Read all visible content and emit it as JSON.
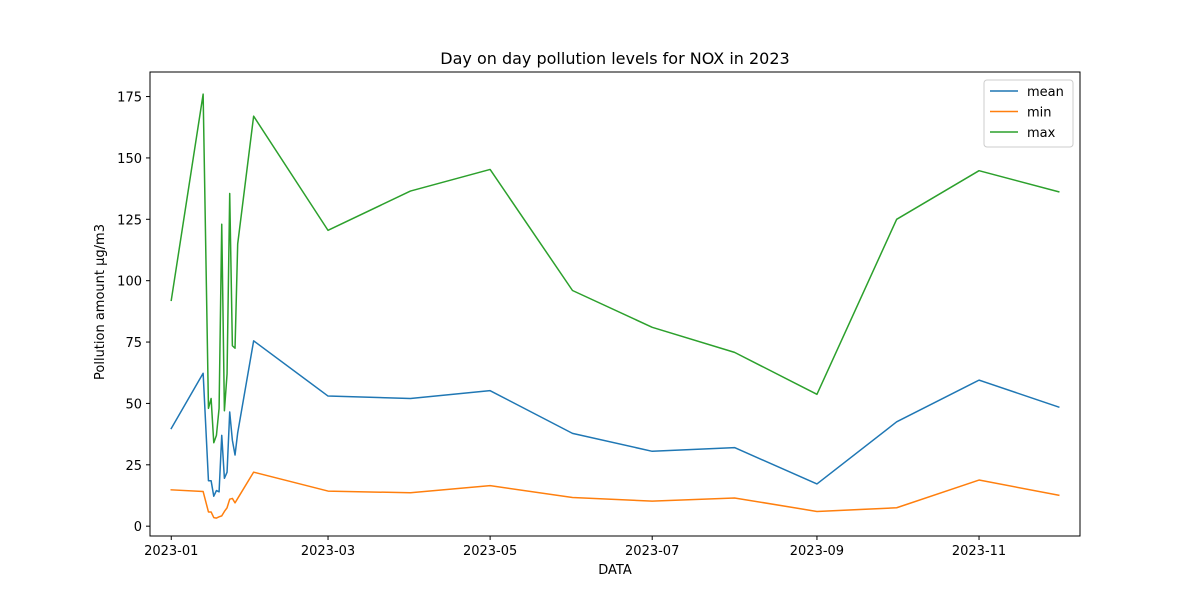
{
  "chart_data": {
    "type": "line",
    "title": "Day on day pollution levels for NOX in 2023",
    "xlabel": "DATA",
    "ylabel": "Pollution amount µg/m3",
    "x_ticks": [
      "2023-01",
      "2023-03",
      "2023-05",
      "2023-07",
      "2023-09",
      "2023-11"
    ],
    "y_ticks": [
      0,
      25,
      50,
      75,
      100,
      125,
      150,
      175
    ],
    "xlim": [
      "2022-12-24",
      "2023-12-09"
    ],
    "ylim": [
      -4,
      185
    ],
    "grid": false,
    "legend_position": "top-right",
    "series": [
      {
        "name": "mean",
        "color": "#1f77b4",
        "x": [
          "2023-01-01",
          "2023-01-13",
          "2023-01-15",
          "2023-01-16",
          "2023-01-17",
          "2023-01-18",
          "2023-01-19",
          "2023-01-20",
          "2023-01-21",
          "2023-01-22",
          "2023-01-23",
          "2023-01-24",
          "2023-01-25",
          "2023-01-26",
          "2023-02-01",
          "2023-03-01",
          "2023-04-01",
          "2023-05-01",
          "2023-06-01",
          "2023-07-01",
          "2023-08-01",
          "2023-09-01",
          "2023-10-01",
          "2023-11-01",
          "2023-12-01"
        ],
        "y": [
          39.8,
          62.3,
          18.5,
          18.5,
          12.2,
          14.5,
          14,
          37,
          19.5,
          22,
          46.5,
          35,
          29,
          38,
          75.5,
          53,
          52,
          55.2,
          37.8,
          30.5,
          32,
          17.2,
          42.5,
          59.5,
          48.5
        ]
      },
      {
        "name": "min",
        "color": "#ff7f0e",
        "x": [
          "2023-01-01",
          "2023-01-13",
          "2023-01-15",
          "2023-01-16",
          "2023-01-17",
          "2023-01-18",
          "2023-01-19",
          "2023-01-20",
          "2023-01-21",
          "2023-01-22",
          "2023-01-23",
          "2023-01-24",
          "2023-01-25",
          "2023-01-26",
          "2023-02-01",
          "2023-03-01",
          "2023-04-01",
          "2023-05-01",
          "2023-06-01",
          "2023-07-01",
          "2023-08-01",
          "2023-09-01",
          "2023-10-01",
          "2023-11-01",
          "2023-12-01"
        ],
        "y": [
          14.8,
          14.1,
          5.8,
          5.8,
          3.5,
          3.3,
          3.8,
          4.2,
          6,
          7.5,
          11,
          11.3,
          9.5,
          11.3,
          22,
          14.3,
          13.6,
          16.5,
          11.7,
          10.2,
          11.5,
          6,
          7.5,
          18.8,
          12.6
        ]
      },
      {
        "name": "max",
        "color": "#2ca02c",
        "x": [
          "2023-01-01",
          "2023-01-13",
          "2023-01-15",
          "2023-01-16",
          "2023-01-17",
          "2023-01-18",
          "2023-01-19",
          "2023-01-20",
          "2023-01-21",
          "2023-01-22",
          "2023-01-23",
          "2023-01-24",
          "2023-01-25",
          "2023-01-26",
          "2023-02-01",
          "2023-03-01",
          "2023-04-01",
          "2023-05-01",
          "2023-06-01",
          "2023-07-01",
          "2023-08-01",
          "2023-09-01",
          "2023-10-01",
          "2023-11-01",
          "2023-12-01"
        ],
        "y": [
          92,
          176,
          48,
          52,
          34,
          37,
          48,
          123,
          47,
          62,
          135.5,
          73.5,
          72.5,
          115,
          167,
          120.5,
          136.5,
          145.3,
          96,
          81,
          70.8,
          53.7,
          125,
          144.8,
          136.2
        ]
      }
    ]
  }
}
